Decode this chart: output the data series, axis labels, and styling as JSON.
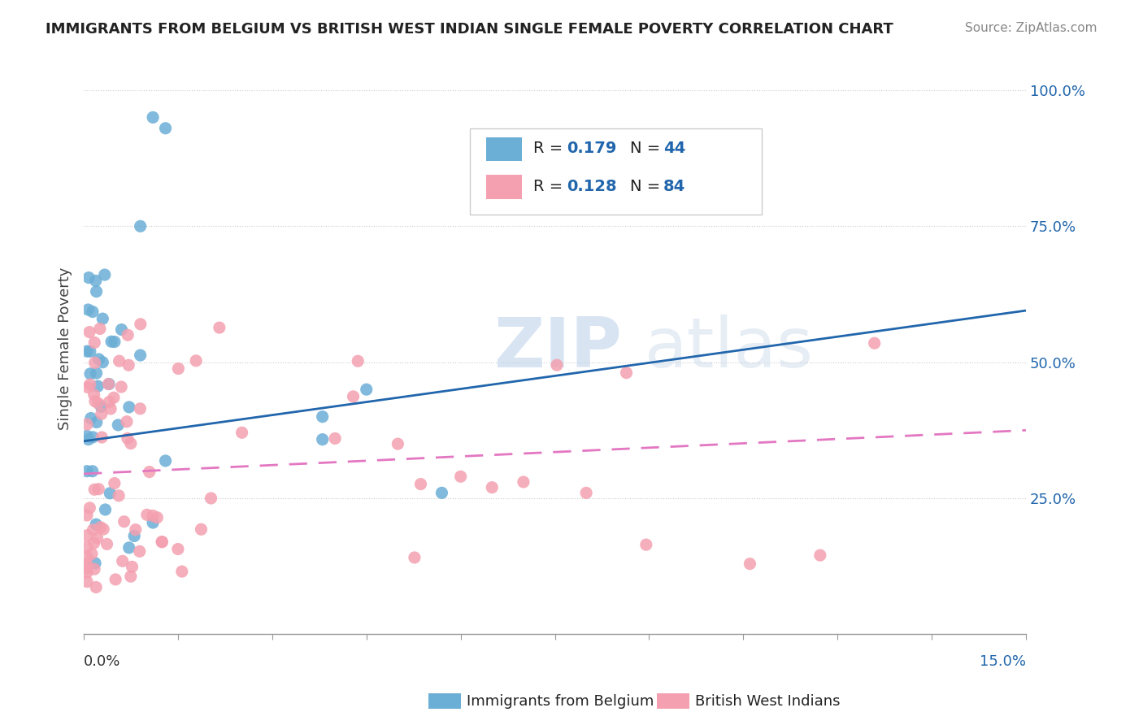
{
  "title": "IMMIGRANTS FROM BELGIUM VS BRITISH WEST INDIAN SINGLE FEMALE POVERTY CORRELATION CHART",
  "source": "Source: ZipAtlas.com",
  "ylabel": "Single Female Poverty",
  "xlim": [
    0.0,
    0.15
  ],
  "ylim": [
    0.0,
    1.05
  ],
  "legend_R1": "0.179",
  "legend_N1": "44",
  "legend_R2": "0.128",
  "legend_N2": "84",
  "legend_label1": "Immigrants from Belgium",
  "legend_label2": "British West Indians",
  "color_blue": "#6baed6",
  "color_pink": "#f4a0b0",
  "color_blue_line": "#2166ac",
  "color_pink_line": "#e377c2",
  "blue_line_x": [
    0.0,
    0.15
  ],
  "blue_line_y": [
    0.355,
    0.595
  ],
  "pink_line_x": [
    0.0,
    0.15
  ],
  "pink_line_y": [
    0.295,
    0.375
  ],
  "watermark_zip": "ZIP",
  "watermark_atlas": "atlas"
}
